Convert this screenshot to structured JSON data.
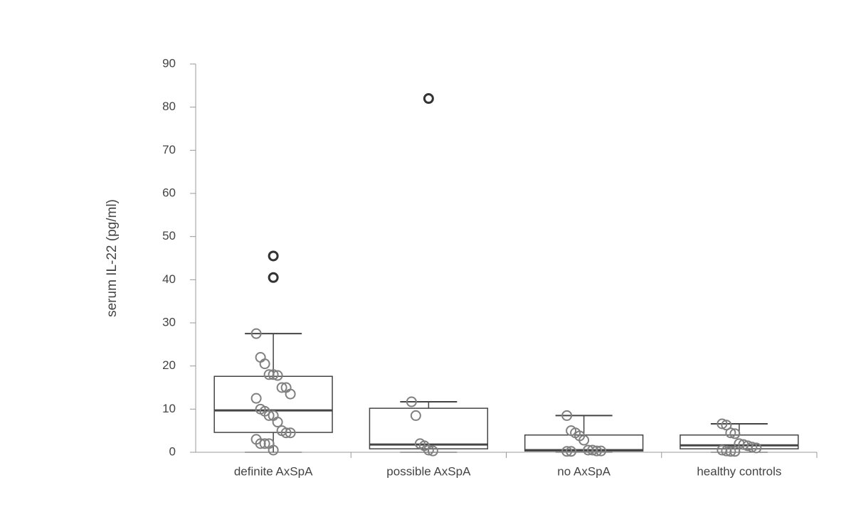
{
  "chart_data": {
    "type": "box",
    "ylabel": "serum IL-22 (pg/ml)",
    "categories": [
      "definite AxSpA",
      "possible AxSpA",
      "no AxSpA",
      "healthy controls"
    ],
    "ylim": [
      0,
      90
    ],
    "yticks": [
      0,
      10,
      20,
      30,
      40,
      50,
      60,
      70,
      80,
      90
    ],
    "box_color": "#444444",
    "point_color": "#808080",
    "outlier_color": "#333333",
    "boxes": [
      {
        "whisker_low": 0,
        "q1": 4.6,
        "median": 9.7,
        "q3": 17.6,
        "whisker_high": 27.5,
        "outliers": [
          45.5,
          40.5
        ],
        "points": [
          27.5,
          22,
          20.5,
          18,
          18,
          17.8,
          15,
          15,
          13.5,
          12.5,
          10,
          9.5,
          8.5,
          8.5,
          7,
          5,
          4.5,
          4.5,
          3,
          2,
          2,
          2,
          0.5
        ]
      },
      {
        "whisker_low": 0,
        "q1": 0.8,
        "median": 1.8,
        "q3": 10.2,
        "whisker_high": 11.7,
        "outliers": [
          82
        ],
        "points": [
          11.7,
          8.5,
          2,
          1.5,
          0.5,
          0.3
        ]
      },
      {
        "whisker_low": 0,
        "q1": 0.3,
        "median": 0.5,
        "q3": 4.0,
        "whisker_high": 8.5,
        "outliers": [],
        "points": [
          8.5,
          5,
          4.5,
          3.8,
          2.8,
          0.5,
          0.5,
          0.3,
          0.3,
          0.2,
          0.2
        ]
      },
      {
        "whisker_low": 0,
        "q1": 0.8,
        "median": 1.6,
        "q3": 4.0,
        "whisker_high": 6.6,
        "outliers": [],
        "points": [
          6.6,
          6.3,
          4.5,
          4.3,
          2,
          1.8,
          1.5,
          1.2,
          1,
          0.5,
          0.3,
          0.2,
          0.2
        ]
      }
    ]
  }
}
